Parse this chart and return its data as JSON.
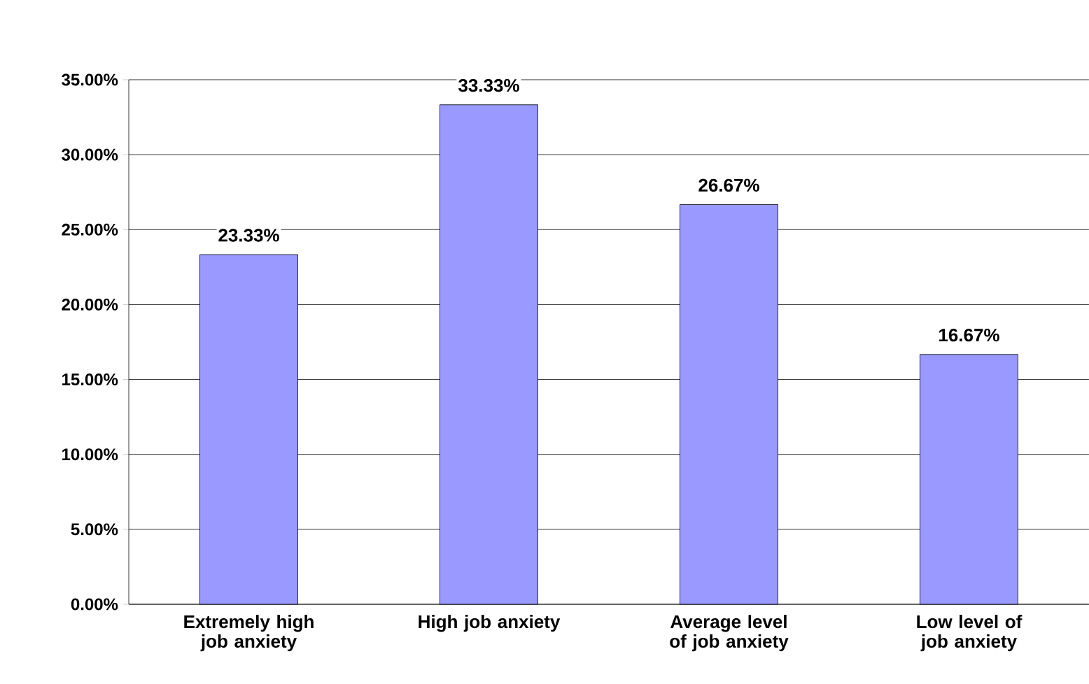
{
  "chart_data": {
    "type": "bar",
    "categories": [
      "Extremely high job anxiety",
      "High job anxiety",
      "Average level of job anxiety",
      "Low level of job anxiety"
    ],
    "values": [
      23.33,
      33.33,
      26.67,
      16.67
    ],
    "value_labels": [
      "23.33%",
      "33.33%",
      "26.67%",
      "16.67%"
    ],
    "color": "#9999ff",
    "ylim": [
      0,
      35
    ],
    "yticks": [
      {
        "value": 0,
        "label": "0.00%"
      },
      {
        "value": 5,
        "label": "5.00%"
      },
      {
        "value": 10,
        "label": "10.00%"
      },
      {
        "value": 15,
        "label": "15.00%"
      },
      {
        "value": 20,
        "label": "20.00%"
      },
      {
        "value": 25,
        "label": "25.00%"
      },
      {
        "value": 30,
        "label": "30.00%"
      },
      {
        "value": 35,
        "label": "35.00%"
      }
    ],
    "grid": "y"
  }
}
